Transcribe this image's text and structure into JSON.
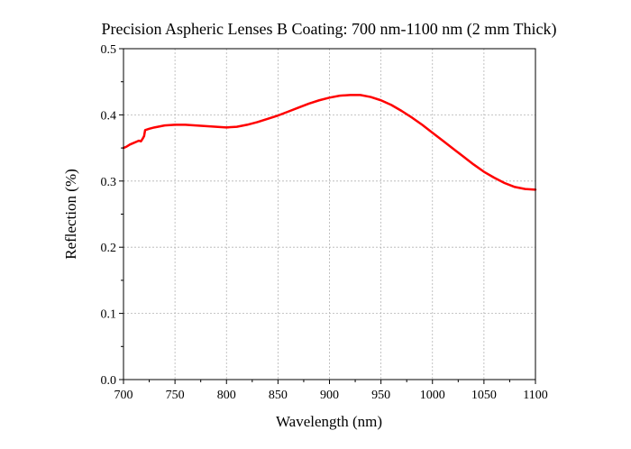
{
  "chart_data": {
    "type": "line",
    "title": "Precision Aspheric Lenses B Coating: 700 nm-1100 nm (2 mm Thick)",
    "xlabel": "Wavelength (nm)",
    "ylabel": "Reflection (%)",
    "xlim": [
      700,
      1100
    ],
    "ylim": [
      0.0,
      0.5
    ],
    "xticks": [
      700,
      750,
      800,
      850,
      900,
      950,
      1000,
      1050,
      1100
    ],
    "yticks": [
      0.0,
      0.1,
      0.2,
      0.3,
      0.4,
      0.5
    ],
    "xtick_labels": [
      "700",
      "750",
      "800",
      "850",
      "900",
      "950",
      "1000",
      "1050",
      "1100"
    ],
    "ytick_labels": [
      "0.0",
      "0.1",
      "0.2",
      "0.3",
      "0.4",
      "0.5"
    ],
    "grid": true,
    "series": [
      {
        "color": "#ff0000",
        "x": [
          700,
          703,
          706,
          709,
          712,
          715,
          717,
          719,
          720,
          721,
          725,
          730,
          740,
          750,
          760,
          770,
          780,
          790,
          800,
          810,
          820,
          830,
          840,
          850,
          860,
          870,
          880,
          890,
          900,
          910,
          920,
          925,
          930,
          940,
          950,
          960,
          970,
          980,
          990,
          1000,
          1010,
          1020,
          1030,
          1040,
          1050,
          1060,
          1070,
          1080,
          1090,
          1100
        ],
        "y": [
          0.35,
          0.352,
          0.355,
          0.357,
          0.359,
          0.361,
          0.36,
          0.365,
          0.368,
          0.377,
          0.379,
          0.381,
          0.384,
          0.385,
          0.385,
          0.384,
          0.383,
          0.382,
          0.381,
          0.382,
          0.385,
          0.389,
          0.394,
          0.399,
          0.405,
          0.411,
          0.417,
          0.422,
          0.426,
          0.429,
          0.43,
          0.43,
          0.43,
          0.427,
          0.422,
          0.415,
          0.406,
          0.396,
          0.385,
          0.373,
          0.361,
          0.349,
          0.337,
          0.325,
          0.314,
          0.305,
          0.297,
          0.291,
          0.288,
          0.287
        ]
      }
    ]
  }
}
